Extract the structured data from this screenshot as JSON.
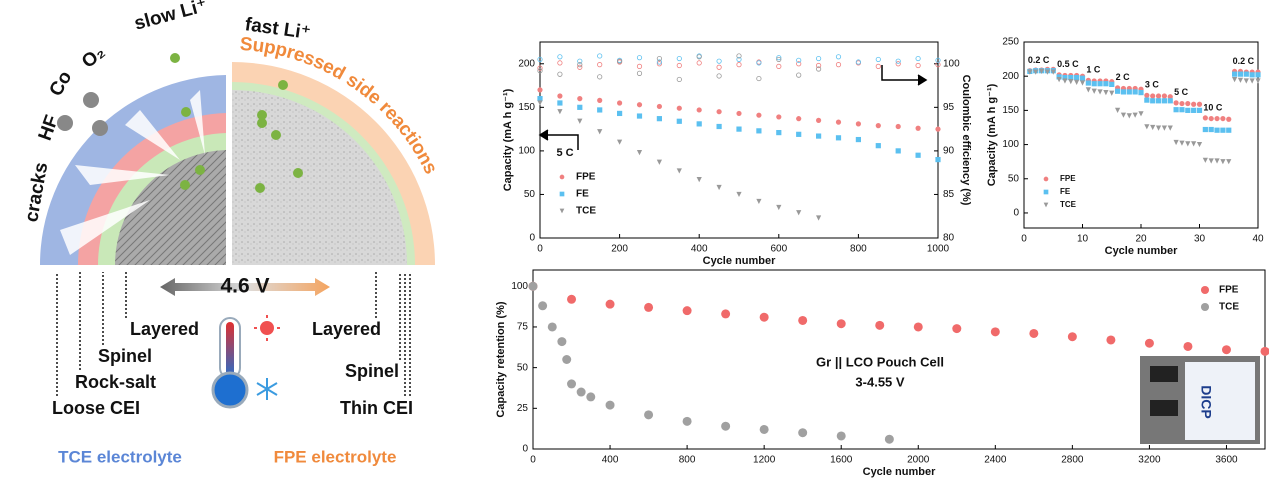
{
  "diagram": {
    "top_labels": [
      "cracks",
      "HF",
      "Co",
      "O₂",
      "slow Li⁺",
      "fast Li⁺"
    ],
    "shell_label": "Suppressed side reactions",
    "voltage": "4.6 V",
    "left_layers": [
      "Layered",
      "Spinel",
      "Rock-salt",
      "Loose CEI"
    ],
    "right_layers": [
      "Layered",
      "Spinel",
      "Thin CEI"
    ],
    "left_electrolyte": "TCE electrolyte",
    "right_electrolyte": "FPE electrolyte",
    "inset_label": "DICP"
  },
  "chart_data": [
    {
      "type": "scatter",
      "x_label": "Cycle number",
      "y_label": "Capacity (mA h g⁻¹)",
      "y2_label": "Coulombic efficiency (%)",
      "annotations": [
        "5 C"
      ],
      "xlim": [
        0,
        1000
      ],
      "xticks": [
        0,
        200,
        400,
        600,
        800,
        1000
      ],
      "ylim": [
        0,
        225
      ],
      "yticks": [
        0,
        50,
        100,
        150,
        200
      ],
      "y2lim": [
        80,
        102.5
      ],
      "y2ticks": [
        80,
        85,
        90,
        95,
        100
      ],
      "legend": "lower left",
      "x": [
        0,
        50,
        100,
        150,
        200,
        250,
        300,
        350,
        400,
        450,
        500,
        550,
        600,
        650,
        700,
        750,
        800,
        850,
        900,
        950,
        1000
      ],
      "series": [
        {
          "name": "FPE",
          "color": "#f08080",
          "marker": "circle",
          "values": [
            170,
            163,
            160,
            158,
            155,
            153,
            151,
            149,
            147,
            145,
            143,
            141,
            139,
            137,
            135,
            133,
            131,
            129,
            128,
            126,
            125
          ],
          "y2_values": [
            99.5,
            100.1,
            99.6,
            99.9,
            100.2,
            99.7,
            100.0,
            99.8,
            100.1,
            99.6,
            99.9,
            100.2,
            99.7,
            100.0,
            99.8,
            99.9,
            100.1,
            99.7,
            100.0,
            99.8,
            99.9
          ]
        },
        {
          "name": "FE",
          "color": "#5bc0f0",
          "marker": "square",
          "values": [
            160,
            155,
            150,
            147,
            143,
            140,
            137,
            134,
            131,
            128,
            125,
            123,
            121,
            119,
            117,
            115,
            113,
            106,
            100,
            95,
            90
          ],
          "y2_values": [
            100.5,
            100.8,
            100.3,
            100.9,
            100.4,
            100.7,
            100.2,
            100.6,
            100.9,
            100.3,
            100.5,
            100.1,
            100.7,
            100.4,
            100.6,
            100.8,
            100.2,
            100.5,
            100.3,
            100.6,
            100.4
          ]
        },
        {
          "name": "TCE",
          "color": "#999999",
          "marker": "triangle",
          "values": [
            155,
            145,
            134,
            122,
            110,
            98,
            87,
            77,
            67,
            58,
            50,
            42,
            35,
            29,
            23,
            null,
            null,
            null,
            null,
            null,
            null
          ],
          "y2_values": [
            99.2,
            98.8,
            99.9,
            98.5,
            100.3,
            98.9,
            100.6,
            98.2,
            100.8,
            98.6,
            100.9,
            98.3,
            100.5,
            98.7,
            99.4,
            null,
            null,
            null,
            null,
            null,
            null
          ]
        }
      ]
    },
    {
      "type": "scatter",
      "x_label": "Cycle number",
      "y_label": "Capacity (mA h g⁻¹)",
      "rate_labels": [
        "0.2 C",
        "0.5 C",
        "1 C",
        "2 C",
        "3 C",
        "5 C",
        "10 C",
        "0.2 C"
      ],
      "xlim": [
        0,
        40
      ],
      "xticks": [
        0,
        10,
        20,
        30,
        40
      ],
      "ylim": [
        -22,
        250
      ],
      "yticks": [
        0,
        50,
        100,
        150,
        200,
        250
      ],
      "legend": "lower left",
      "x": [
        1,
        2,
        3,
        4,
        5,
        6,
        7,
        8,
        9,
        10,
        11,
        12,
        13,
        14,
        15,
        16,
        17,
        18,
        19,
        20,
        21,
        22,
        23,
        24,
        25,
        26,
        27,
        28,
        29,
        30,
        31,
        32,
        33,
        34,
        35,
        36,
        37,
        38,
        39,
        40
      ],
      "series": [
        {
          "name": "FPE",
          "color": "#f08080",
          "marker": "circle",
          "values": [
            208,
            209,
            209,
            210,
            210,
            202,
            201,
            201,
            201,
            200,
            194,
            193,
            193,
            193,
            192,
            183,
            182,
            182,
            182,
            181,
            172,
            171,
            171,
            171,
            170,
            161,
            160,
            160,
            159,
            159,
            139,
            138,
            138,
            138,
            137,
            207,
            207,
            206,
            206,
            206
          ]
        },
        {
          "name": "FE",
          "color": "#5bc0f0",
          "marker": "square",
          "values": [
            207,
            208,
            208,
            208,
            208,
            199,
            198,
            198,
            198,
            197,
            190,
            189,
            189,
            189,
            188,
            178,
            177,
            177,
            177,
            176,
            165,
            164,
            164,
            164,
            164,
            151,
            151,
            150,
            150,
            150,
            122,
            122,
            121,
            121,
            121,
            203,
            203,
            203,
            202,
            202
          ]
        },
        {
          "name": "TCE",
          "color": "#999999",
          "marker": "triangle",
          "values": [
            206,
            206,
            207,
            206,
            206,
            195,
            193,
            192,
            191,
            190,
            180,
            178,
            177,
            176,
            175,
            150,
            143,
            142,
            143,
            145,
            126,
            125,
            124,
            124,
            124,
            103,
            102,
            101,
            101,
            100,
            77,
            76,
            76,
            75,
            75,
            195,
            194,
            193,
            193,
            193
          ]
        }
      ]
    },
    {
      "type": "scatter",
      "x_label": "Cycle number",
      "y_label": "Capacity retention (%)",
      "annotations": [
        "Gr || LCO Pouch Cell",
        "3-4.55 V"
      ],
      "xlim": [
        0,
        3800
      ],
      "xticks": [
        0,
        400,
        800,
        1200,
        1600,
        2000,
        2400,
        2800,
        3200,
        3600
      ],
      "ylim": [
        0,
        110
      ],
      "yticks": [
        0,
        25,
        50,
        75,
        100
      ],
      "legend": "upper right",
      "series": [
        {
          "name": "FPE",
          "color": "#f06a6a",
          "marker": "circle",
          "x": [
            0,
            200,
            400,
            600,
            800,
            1000,
            1200,
            1400,
            1600,
            1800,
            2000,
            2200,
            2400,
            2600,
            2800,
            3000,
            3200,
            3400,
            3600,
            3800
          ],
          "values": [
            100,
            92,
            89,
            87,
            85,
            83,
            81,
            79,
            77,
            76,
            75,
            74,
            72,
            71,
            69,
            67,
            65,
            63,
            61,
            60
          ]
        },
        {
          "name": "TCE",
          "color": "#a0a0a0",
          "marker": "circle",
          "x": [
            0,
            50,
            100,
            150,
            175,
            200,
            250,
            300,
            400,
            600,
            800,
            1000,
            1200,
            1400,
            1600,
            1850
          ],
          "values": [
            100,
            88,
            75,
            66,
            55,
            40,
            35,
            32,
            27,
            21,
            17,
            14,
            12,
            10,
            8,
            6
          ]
        }
      ]
    }
  ]
}
